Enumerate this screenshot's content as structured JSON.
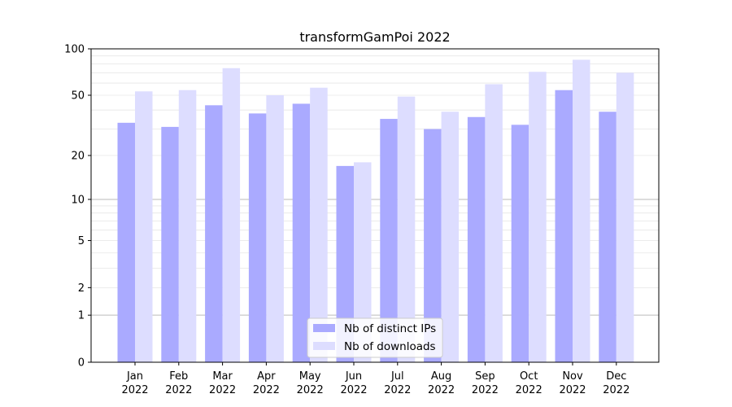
{
  "chart_data": {
    "type": "bar",
    "title": "transformGamPoi 2022",
    "xlabel": "",
    "ylabel": "",
    "scale": "log1p",
    "ylim": [
      0,
      100
    ],
    "y_ticks": [
      0,
      1,
      2,
      5,
      10,
      20,
      50,
      100
    ],
    "y_tick_labels": [
      "0",
      "1",
      "2",
      "5",
      "10",
      "20",
      "50",
      "100"
    ],
    "categories": [
      "Jan",
      "Feb",
      "Mar",
      "Apr",
      "May",
      "Jun",
      "Jul",
      "Aug",
      "Sep",
      "Oct",
      "Nov",
      "Dec"
    ],
    "year_label": "2022",
    "series": [
      {
        "name": "Nb of distinct IPs",
        "color": "#aaaaff",
        "values": [
          33,
          31,
          43,
          38,
          44,
          17,
          35,
          30,
          36,
          32,
          54,
          39
        ]
      },
      {
        "name": "Nb of downloads",
        "color": "#ddddff",
        "values": [
          53,
          54,
          75,
          50,
          56,
          18,
          49,
          39,
          59,
          71,
          85,
          70
        ]
      }
    ],
    "legend_position": "lower-center",
    "grid": "horizontal"
  }
}
